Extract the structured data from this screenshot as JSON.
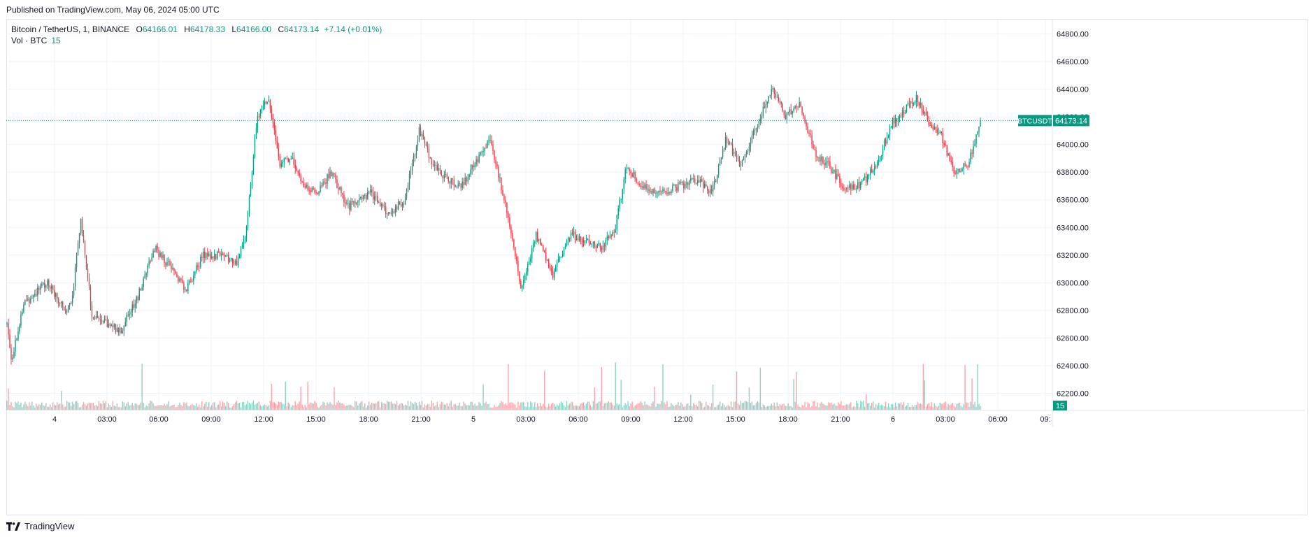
{
  "published": "Published on TradingView.com, May 06, 2024 05:00 UTC",
  "legend": {
    "symbol": "Bitcoin / TetherUS, 1, BINANCE",
    "o_label": "O",
    "o": "64166.01",
    "h_label": "H",
    "h": "64178.33",
    "l_label": "L",
    "l": "64166.00",
    "c_label": "C",
    "c": "64173.14",
    "change": "+7.14 (+0.01%)",
    "vol_label": "Vol · BTC",
    "vol_value": "15"
  },
  "footer": {
    "brand": "TradingView"
  },
  "colors": {
    "up": "#089981",
    "down": "#f23645",
    "grid": "#f0f3fa",
    "price_line": "#089981"
  },
  "chart_data": {
    "type": "candlestick",
    "symbol_label": "BTCUSDT",
    "last_price": 64173.14,
    "last_volume": 15,
    "ylim": [
      62200,
      64800
    ],
    "y_ticks": [
      "64800.00",
      "64600.00",
      "64400.00",
      "64200.00",
      "64000.00",
      "63800.00",
      "63600.00",
      "63400.00",
      "63200.00",
      "63000.00",
      "62800.00",
      "62600.00",
      "62400.00",
      "62200.00"
    ],
    "x_ticks": [
      "4",
      "03:00",
      "06:00",
      "09:00",
      "12:00",
      "15:00",
      "18:00",
      "21:00",
      "5",
      "03:00",
      "06:00",
      "09:00",
      "12:00",
      "15:00",
      "18:00",
      "21:00",
      "6",
      "03:00",
      "06:00",
      "09:"
    ],
    "x_range_hours": [
      "2024-05-03 21:50",
      "2024-05-06 09:30"
    ],
    "price_path": [
      {
        "t": 0,
        "p": 62700
      },
      {
        "t": 8,
        "p": 62450
      },
      {
        "t": 30,
        "p": 62850
      },
      {
        "t": 70,
        "p": 63000
      },
      {
        "t": 105,
        "p": 62800
      },
      {
        "t": 115,
        "p": 62900
      },
      {
        "t": 130,
        "p": 63450
      },
      {
        "t": 150,
        "p": 62750
      },
      {
        "t": 200,
        "p": 62650
      },
      {
        "t": 230,
        "p": 62900
      },
      {
        "t": 260,
        "p": 63250
      },
      {
        "t": 290,
        "p": 63100
      },
      {
        "t": 315,
        "p": 62950
      },
      {
        "t": 345,
        "p": 63200
      },
      {
        "t": 370,
        "p": 63200
      },
      {
        "t": 405,
        "p": 63150
      },
      {
        "t": 420,
        "p": 63350
      },
      {
        "t": 440,
        "p": 64200
      },
      {
        "t": 460,
        "p": 64350
      },
      {
        "t": 480,
        "p": 63850
      },
      {
        "t": 500,
        "p": 63900
      },
      {
        "t": 520,
        "p": 63700
      },
      {
        "t": 545,
        "p": 63650
      },
      {
        "t": 570,
        "p": 63800
      },
      {
        "t": 600,
        "p": 63550
      },
      {
        "t": 640,
        "p": 63650
      },
      {
        "t": 670,
        "p": 63500
      },
      {
        "t": 700,
        "p": 63600
      },
      {
        "t": 725,
        "p": 64100
      },
      {
        "t": 750,
        "p": 63850
      },
      {
        "t": 775,
        "p": 63750
      },
      {
        "t": 800,
        "p": 63700
      },
      {
        "t": 830,
        "p": 63900
      },
      {
        "t": 850,
        "p": 64050
      },
      {
        "t": 880,
        "p": 63500
      },
      {
        "t": 905,
        "p": 62950
      },
      {
        "t": 930,
        "p": 63350
      },
      {
        "t": 960,
        "p": 63050
      },
      {
        "t": 990,
        "p": 63350
      },
      {
        "t": 1020,
        "p": 63300
      },
      {
        "t": 1045,
        "p": 63250
      },
      {
        "t": 1070,
        "p": 63400
      },
      {
        "t": 1090,
        "p": 63850
      },
      {
        "t": 1115,
        "p": 63700
      },
      {
        "t": 1150,
        "p": 63650
      },
      {
        "t": 1185,
        "p": 63700
      },
      {
        "t": 1215,
        "p": 63750
      },
      {
        "t": 1240,
        "p": 63650
      },
      {
        "t": 1265,
        "p": 64050
      },
      {
        "t": 1290,
        "p": 63850
      },
      {
        "t": 1320,
        "p": 64150
      },
      {
        "t": 1345,
        "p": 64400
      },
      {
        "t": 1370,
        "p": 64200
      },
      {
        "t": 1395,
        "p": 64300
      },
      {
        "t": 1420,
        "p": 63950
      },
      {
        "t": 1445,
        "p": 63850
      },
      {
        "t": 1470,
        "p": 63700
      },
      {
        "t": 1500,
        "p": 63700
      },
      {
        "t": 1530,
        "p": 63850
      },
      {
        "t": 1555,
        "p": 64150
      },
      {
        "t": 1580,
        "p": 64250
      },
      {
        "t": 1600,
        "p": 64350
      },
      {
        "t": 1620,
        "p": 64150
      },
      {
        "t": 1645,
        "p": 64050
      },
      {
        "t": 1665,
        "p": 63800
      },
      {
        "t": 1690,
        "p": 63850
      },
      {
        "t": 1712,
        "p": 64173
      }
    ]
  }
}
